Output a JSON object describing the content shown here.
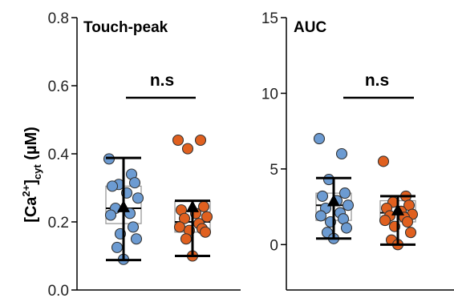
{
  "colors": {
    "group_a": "#6C9BD2",
    "group_b": "#E0601F",
    "point_edge": "#333333",
    "box_edge": "#999999",
    "axis": "#000000"
  },
  "y_label": {
    "base": "[Ca",
    "sup": "2+",
    "mid": "]",
    "sub": "cyt",
    "unit": " (µM)"
  },
  "chart_data": [
    {
      "type": "scatter",
      "title": "Touch-peak",
      "ylim": [
        0.0,
        0.8
      ],
      "yticks": [
        0.0,
        0.2,
        0.4,
        0.6,
        0.8
      ],
      "ytick_labels": [
        "0.0",
        "0.2",
        "0.4",
        "0.6",
        "0.8"
      ],
      "significance": "n.s",
      "groups": [
        {
          "points": [
            0.385,
            0.34,
            0.31,
            0.315,
            0.305,
            0.285,
            0.27,
            0.24,
            0.225,
            0.22,
            0.185,
            0.165,
            0.15,
            0.125,
            0.09
          ],
          "box": [
            0.195,
            0.24,
            0.305
          ],
          "mean": 0.245,
          "whisker": [
            0.088,
            0.388
          ]
        },
        {
          "points": [
            0.44,
            0.44,
            0.415,
            0.245,
            0.235,
            0.225,
            0.215,
            0.21,
            0.195,
            0.185,
            0.18,
            0.175,
            0.17,
            0.15,
            0.1
          ],
          "box": [
            0.17,
            0.2,
            0.26
          ],
          "mean": 0.245,
          "whisker": [
            0.1,
            0.262
          ]
        }
      ]
    },
    {
      "type": "scatter",
      "title": "AUC",
      "ylim": [
        -3,
        15
      ],
      "yticks": [
        0,
        5,
        10,
        15
      ],
      "ytick_labels": [
        "0",
        "5",
        "10",
        "15"
      ],
      "significance": "n.s",
      "groups": [
        {
          "points": [
            7.0,
            6.0,
            4.3,
            3.4,
            3.2,
            2.9,
            2.6,
            2.4,
            2.1,
            1.9,
            1.7,
            1.5,
            1.1,
            0.8,
            0.4
          ],
          "box": [
            1.6,
            2.6,
            3.4
          ],
          "mean": 2.9,
          "whisker": [
            0.4,
            4.4
          ]
        },
        {
          "points": [
            5.5,
            3.2,
            2.8,
            2.6,
            2.4,
            2.2,
            2.0,
            1.9,
            1.8,
            1.6,
            1.5,
            1.2,
            0.8,
            0.3,
            0.0
          ],
          "box": [
            1.5,
            2.1,
            2.9
          ],
          "mean": 2.3,
          "whisker": [
            0.0,
            3.2
          ]
        }
      ]
    }
  ]
}
